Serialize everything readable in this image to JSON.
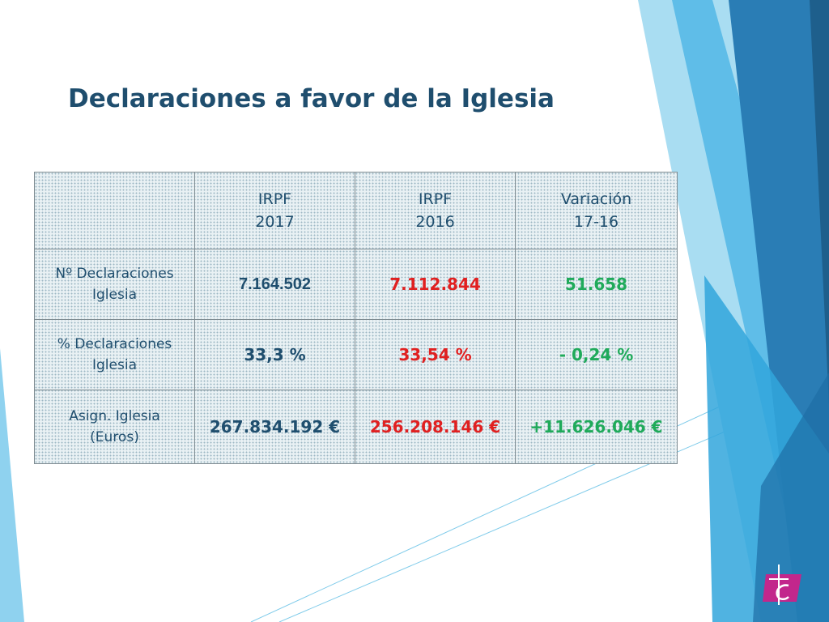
{
  "slide": {
    "title": "Declaraciones a favor de la Iglesia"
  },
  "table": {
    "headers": [
      {
        "line1": "",
        "line2": ""
      },
      {
        "line1": "IRPF",
        "line2": "2017"
      },
      {
        "line1": "IRPF",
        "line2": "2016"
      },
      {
        "line1": "Variación",
        "line2": "17-16"
      }
    ],
    "rows": [
      {
        "label_line1": "Nº Declaraciones",
        "label_line2": "Iglesia",
        "irpf_2017": "7.164.502",
        "irpf_2016": "7.112.844",
        "variacion": "51.658"
      },
      {
        "label_line1": "% Declaraciones",
        "label_line2": "Iglesia",
        "irpf_2017": "33,3 %",
        "irpf_2016": "33,54 %",
        "variacion": "- 0,24 %"
      },
      {
        "label_line1": "Asign. Iglesia",
        "label_line2": "(Euros)",
        "irpf_2017": "267.834.192 €",
        "irpf_2016": "256.208.146 €",
        "variacion": "+11.626.046 €"
      }
    ]
  },
  "colors": {
    "title": "#1f4e6e",
    "value_2017": "#1f4e6e",
    "value_2016": "#e02020",
    "value_variation": "#1faa5a",
    "accent_dark_blue": "#1e5f8c",
    "accent_light_blue": "#7fcbea",
    "logo_magenta": "#c2278c"
  },
  "icons": {
    "logo": "church-logo-icon"
  }
}
